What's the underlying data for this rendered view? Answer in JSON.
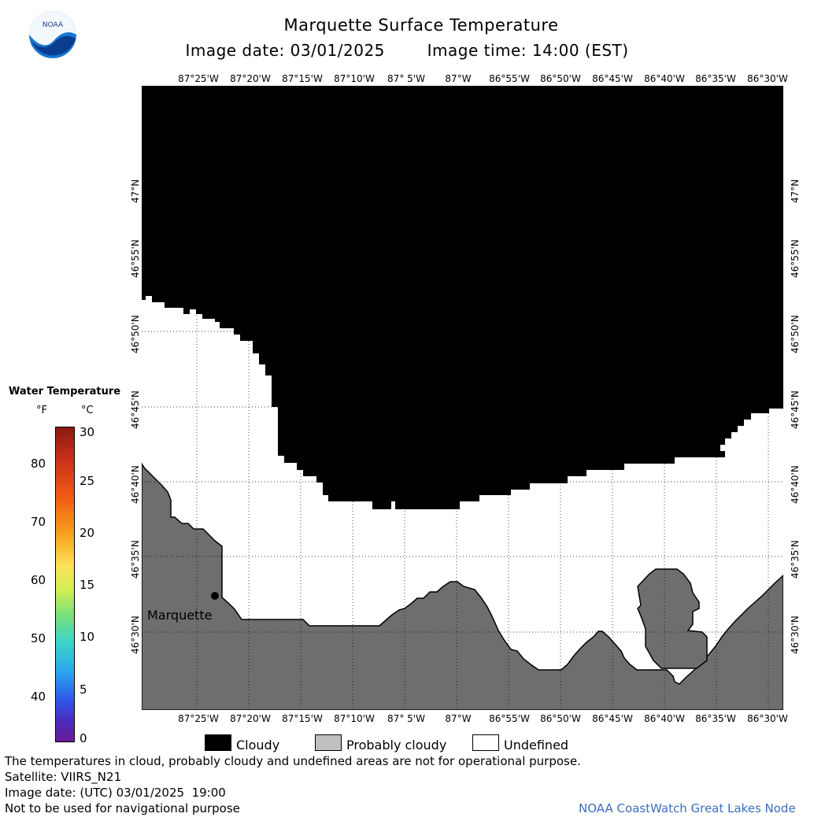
{
  "header": {
    "title": "Marquette Surface Temperature",
    "image_date_label": "Image date: 03/01/2025",
    "image_time_label": "Image time: 14:00 (EST)"
  },
  "logo": {
    "text": "NOAA"
  },
  "longitude_labels": [
    "87°25'W",
    "87°20'W",
    "87°15'W",
    "87°10'W",
    "87° 5'W",
    "87°W",
    "86°55'W",
    "86°50'W",
    "86°45'W",
    "86°40'W",
    "86°35'W",
    "86°30'W"
  ],
  "latitude_labels": [
    "47°N",
    "46°55'N",
    "46°50'N",
    "46°45'N",
    "46°40'N",
    "46°35'N",
    "46°30'N"
  ],
  "map": {
    "city_label": "Marquette",
    "colors": {
      "cloudy": "#000000",
      "land": "#6e6e6e",
      "undefined": "#ffffff",
      "grid": "#000000"
    }
  },
  "colorbar": {
    "title": "Water Temperature",
    "unit_f": "°F",
    "unit_c": "°C",
    "ticks_f": [
      "80",
      "70",
      "60",
      "50",
      "40"
    ],
    "ticks_c": [
      "30",
      "25",
      "20",
      "15",
      "10",
      "5",
      "0"
    ]
  },
  "legend": {
    "cloudy": "Cloudy",
    "probably_cloudy": "Probably cloudy",
    "undefined": "Undefined",
    "colors": {
      "cloudy": "#000000",
      "probably_cloudy": "#c0c0c0",
      "undefined": "#ffffff"
    }
  },
  "footer": {
    "disclaimer": "The temperatures in cloud, probably cloudy and undefined areas are not for operational purpose.",
    "satellite": "Satellite: VIIRS_N21",
    "utc_date": "Image date: (UTC) 03/01/2025  19:00",
    "nav_warning": "Not to be used for navigational purpose",
    "credit": "NOAA CoastWatch Great Lakes Node"
  }
}
